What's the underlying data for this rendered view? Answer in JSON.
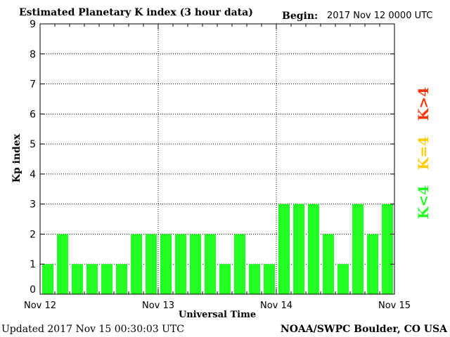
{
  "header": {
    "title": "Estimated Planetary K index (3 hour data)",
    "begin_label": "Begin:",
    "begin_value": "2017 Nov 12 0000 UTC"
  },
  "footer": {
    "updated": "Updated 2017 Nov 15 00:30:03 UTC",
    "credit": "NOAA/SWPC Boulder, CO USA"
  },
  "legend": {
    "items": [
      {
        "label": "K<4",
        "color": "#22ff22"
      },
      {
        "label": "K=4",
        "color": "#ffcc00"
      },
      {
        "label": "K>4",
        "color": "#ff3300"
      }
    ]
  },
  "chart_data": {
    "type": "bar",
    "xlabel": "Universal Time",
    "ylabel": "Kp index",
    "ylim": [
      0,
      9
    ],
    "yticks": [
      0,
      1,
      2,
      3,
      4,
      5,
      6,
      7,
      8,
      9
    ],
    "xtick_labels": [
      "Nov 12",
      "Nov 13",
      "Nov 14",
      "Nov 15"
    ],
    "bar_interval_hours": 3,
    "values": [
      1,
      2,
      1,
      1,
      1,
      1,
      2,
      2,
      2,
      2,
      2,
      2,
      1,
      2,
      1,
      1,
      3,
      3,
      3,
      2,
      1,
      3,
      2,
      3
    ],
    "bar_color": "#22ff22",
    "grid": "dotted"
  }
}
